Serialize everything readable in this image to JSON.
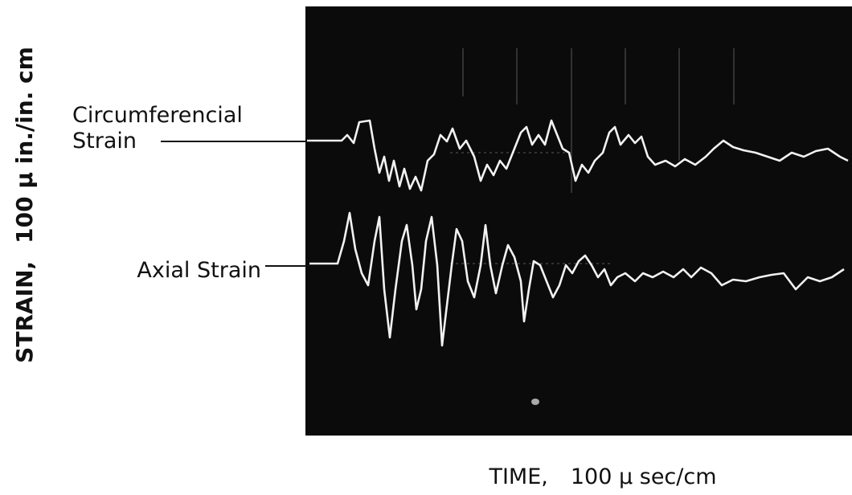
{
  "traces": [
    {
      "label": [
        "Circumferencial",
        "Strain"
      ]
    },
    {
      "label": [
        "Axial Strain"
      ]
    }
  ],
  "y_axis_label": {
    "quantity": "STRAIN,",
    "unit": "100 μ in./in. cm"
  },
  "x_axis_label": {
    "quantity": "TIME,",
    "unit": "100 μ sec/cm"
  }
}
